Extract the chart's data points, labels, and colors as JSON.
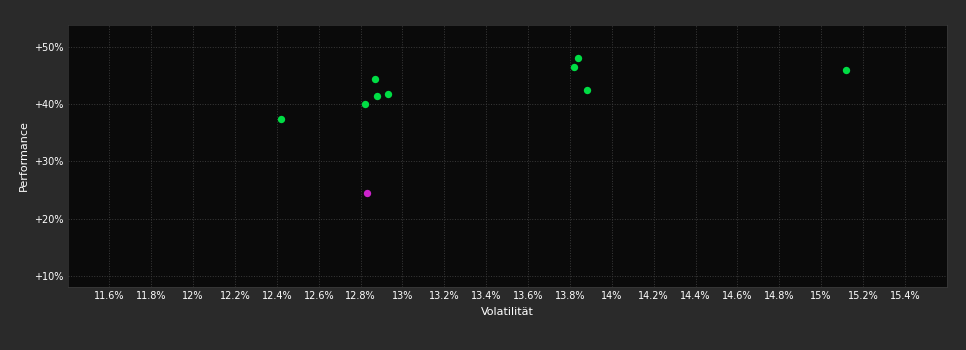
{
  "background_color": "#2a2a2a",
  "plot_bg_color": "#0a0a0a",
  "grid_color": "#3a3a3a",
  "text_color": "#ffffff",
  "xlabel": "Volatilität",
  "ylabel": "Performance",
  "xlim": [
    11.4,
    15.6
  ],
  "ylim": [
    8,
    54
  ],
  "xticks": [
    11.6,
    11.8,
    12.0,
    12.2,
    12.4,
    12.6,
    12.8,
    13.0,
    13.2,
    13.4,
    13.6,
    13.8,
    14.0,
    14.2,
    14.4,
    14.6,
    14.8,
    15.0,
    15.2,
    15.4
  ],
  "xtick_labels": [
    "11.6%",
    "11.8%",
    "12%",
    "12.2%",
    "12.4%",
    "12.6%",
    "12.8%",
    "13%",
    "13.2%",
    "13.4%",
    "13.6%",
    "13.8%",
    "14%",
    "14.2%",
    "14.4%",
    "14.6%",
    "14.8%",
    "15%",
    "15.2%",
    "15.4%"
  ],
  "yticks": [
    10,
    20,
    30,
    40,
    50
  ],
  "ytick_labels": [
    "+10%",
    "+20%",
    "+30%",
    "+40%",
    "+50%"
  ],
  "green_points": [
    [
      12.42,
      37.5
    ],
    [
      12.82,
      40.1
    ],
    [
      12.88,
      41.4
    ],
    [
      12.93,
      41.8
    ],
    [
      12.87,
      44.5
    ],
    [
      13.82,
      46.5
    ],
    [
      13.84,
      48.2
    ],
    [
      13.88,
      42.5
    ],
    [
      15.12,
      46.0
    ]
  ],
  "magenta_points": [
    [
      12.83,
      24.5
    ]
  ],
  "green_color": "#00dd44",
  "magenta_color": "#cc22cc",
  "marker_size": 5,
  "font_size_ticks": 7,
  "font_size_label": 8
}
